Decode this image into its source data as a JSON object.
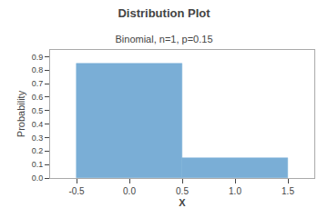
{
  "chart_data": {
    "type": "histogram",
    "title": "Distribution Plot",
    "subtitle": "Binomial, n=1, p=0.15",
    "xlabel": "X",
    "ylabel": "Probability",
    "bins": [
      -0.5,
      0.5,
      1.5
    ],
    "values": [
      0.85,
      0.15
    ],
    "color": "#7aaed6",
    "xlim": [
      -0.75,
      1.75
    ],
    "xticks": [
      -0.5,
      {
        "value": 0,
        "label": "0.0"
      },
      0.5,
      {
        "value": 1,
        "label": "1.0"
      },
      1.5
    ],
    "ylim": [
      0.0,
      0.95
    ],
    "yticks": [
      {
        "value": 0,
        "label": "0.0"
      },
      0.1,
      0.2,
      0.3,
      0.4,
      0.5,
      0.6,
      0.7,
      0.8,
      0.9
    ],
    "grid": false
  }
}
